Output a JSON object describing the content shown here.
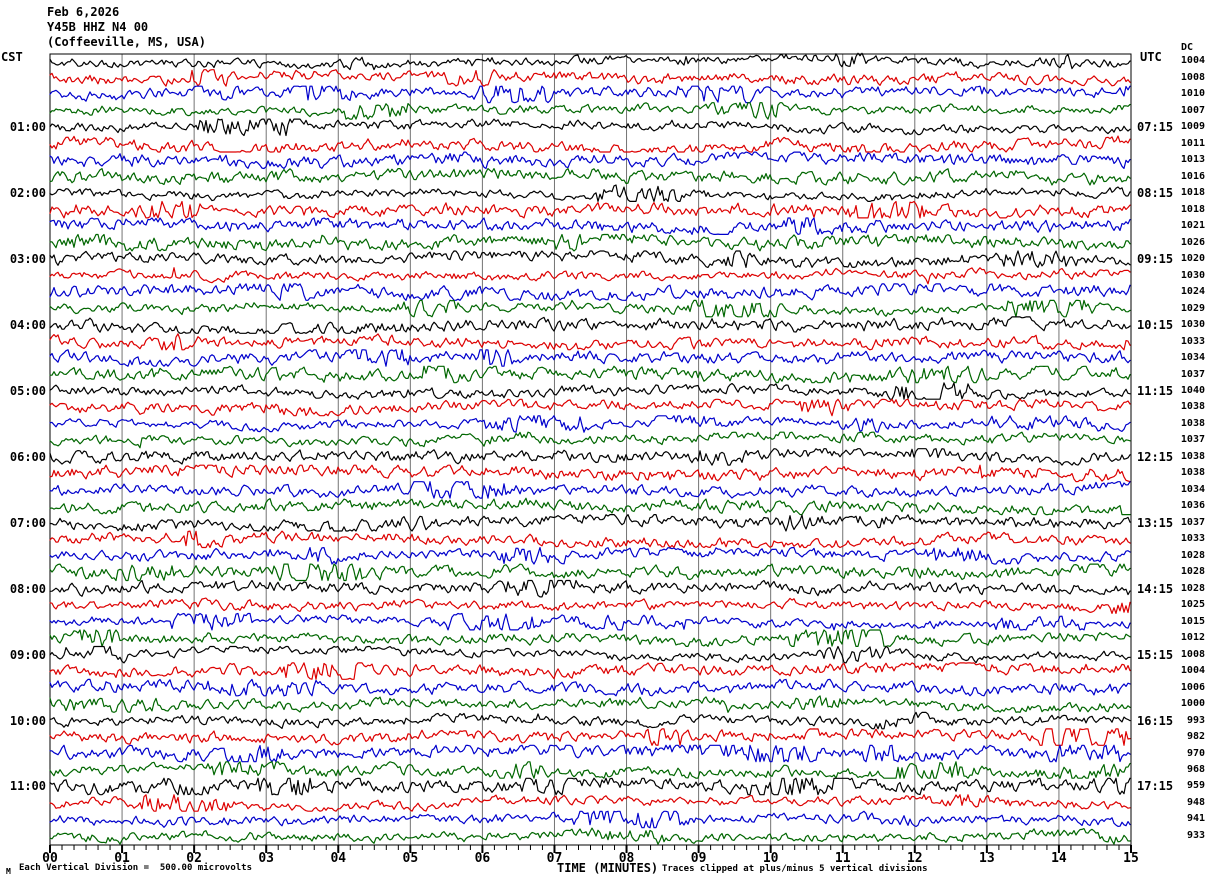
{
  "header": {
    "date": "Feb 6,2026",
    "station": "Y45B HHZ N4 00",
    "location": "(Coffeeville, MS, USA)"
  },
  "chart_data": {
    "type": "line",
    "subtype": "helicorder-seismogram",
    "time_axis_label": "TIME (MINUTES)",
    "minute_tick_labels": [
      "00",
      "01",
      "02",
      "03",
      "04",
      "05",
      "06",
      "07",
      "08",
      "09",
      "10",
      "11",
      "12",
      "13",
      "14",
      "15"
    ],
    "minutes_per_line": 15,
    "traces_per_hour": 4,
    "trace_count": 48,
    "trace_color_cycle": [
      "#000000",
      "#dd0000",
      "#0000cc",
      "#006600"
    ],
    "grid_color": "#737373",
    "left_timezone": "CST",
    "left_hour_labels": [
      "01:00",
      "02:00",
      "03:00",
      "04:00",
      "05:00",
      "06:00",
      "07:00",
      "08:00",
      "09:00",
      "10:00",
      "11:00"
    ],
    "right_timezone": "UTC",
    "right_hour_labels": [
      "07:15",
      "08:15",
      "09:15",
      "10:15",
      "11:15",
      "12:15",
      "13:15",
      "14:15",
      "15:15",
      "16:15",
      "17:15"
    ],
    "dc_column_label": "DC",
    "dc_values": [
      1004,
      1008,
      1010,
      1007,
      1009,
      1011,
      1013,
      1016,
      1018,
      1018,
      1021,
      1026,
      1020,
      1030,
      1024,
      1029,
      1030,
      1033,
      1034,
      1037,
      1040,
      1038,
      1038,
      1037,
      1038,
      1038,
      1034,
      1036,
      1037,
      1033,
      1028,
      1028,
      1028,
      1025,
      1015,
      1012,
      1008,
      1004,
      1006,
      1000,
      993,
      982,
      970,
      968,
      959,
      948,
      941,
      933
    ],
    "vertical_division": "500.00 microvolts",
    "clip_limit": "plus/minus 5 vertical divisions"
  },
  "footer": {
    "scale_note": "Each Vertical Division =  500.00 microvolts",
    "clip_note": "Traces clipped at plus/minus 5 vertical divisions",
    "corner_mark": "M"
  }
}
